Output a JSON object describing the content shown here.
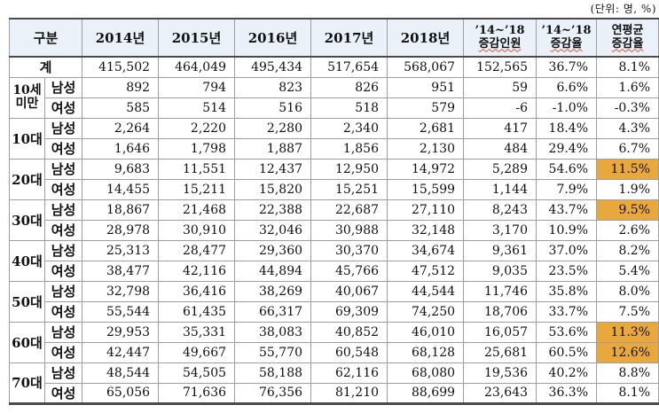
{
  "caption": "(단위: 명, %)",
  "colors": {
    "header_bg": "#EAF1F8",
    "highlight": "#E8A83C",
    "wavy_underline": "#e0523c"
  },
  "table": {
    "headers": {
      "gubun": "구분",
      "years": [
        "2014년",
        "2015년",
        "2016년",
        "2017년",
        "2018년"
      ],
      "change_count_line1": "’14~’18",
      "change_count_line2": "증감인원",
      "change_rate_line1": "’14~’18",
      "change_rate_line2": "증감율",
      "avg_rate_line1": "연평균",
      "avg_rate_line2": "증감율"
    },
    "total_row": {
      "label": "계",
      "values": [
        "415,502",
        "464,049",
        "495,434",
        "517,654",
        "568,067",
        "152,565",
        "36.7%",
        "8.1%"
      ],
      "hl": []
    },
    "groups": [
      {
        "age_lines": [
          "10세",
          "미만"
        ],
        "rows": [
          {
            "gender": "남성",
            "values": [
              "892",
              "794",
              "823",
              "826",
              "951",
              "59",
              "6.6%",
              "1.6%"
            ],
            "hl": []
          },
          {
            "gender": "여성",
            "values": [
              "585",
              "514",
              "516",
              "518",
              "579",
              "-6",
              "-1.0%",
              "-0.3%"
            ],
            "hl": []
          }
        ]
      },
      {
        "age_lines": [
          "10대"
        ],
        "rows": [
          {
            "gender": "남성",
            "values": [
              "2,264",
              "2,220",
              "2,280",
              "2,340",
              "2,681",
              "417",
              "18.4%",
              "4.3%"
            ],
            "hl": []
          },
          {
            "gender": "여성",
            "values": [
              "1,646",
              "1,798",
              "1,887",
              "1,856",
              "2,130",
              "484",
              "29.4%",
              "6.7%"
            ],
            "hl": []
          }
        ]
      },
      {
        "age_lines": [
          "20대"
        ],
        "rows": [
          {
            "gender": "남성",
            "values": [
              "9,683",
              "11,551",
              "12,437",
              "12,950",
              "14,972",
              "5,289",
              "54.6%",
              "11.5%"
            ],
            "hl": [
              7
            ]
          },
          {
            "gender": "여성",
            "values": [
              "14,455",
              "15,211",
              "15,820",
              "15,251",
              "15,599",
              "1,144",
              "7.9%",
              "1.9%"
            ],
            "hl": []
          }
        ]
      },
      {
        "age_lines": [
          "30대"
        ],
        "rows": [
          {
            "gender": "남성",
            "values": [
              "18,867",
              "21,468",
              "22,388",
              "22,687",
              "27,110",
              "8,243",
              "43.7%",
              "9.5%"
            ],
            "hl": [
              7
            ]
          },
          {
            "gender": "여성",
            "values": [
              "28,978",
              "30,910",
              "32,046",
              "30,988",
              "32,148",
              "3,170",
              "10.9%",
              "2.6%"
            ],
            "hl": []
          }
        ]
      },
      {
        "age_lines": [
          "40대"
        ],
        "rows": [
          {
            "gender": "남성",
            "values": [
              "25,313",
              "28,477",
              "29,360",
              "30,370",
              "34,674",
              "9,361",
              "37.0%",
              "8.2%"
            ],
            "hl": []
          },
          {
            "gender": "여성",
            "values": [
              "38,477",
              "42,116",
              "44,894",
              "45,766",
              "47,512",
              "9,035",
              "23.5%",
              "5.4%"
            ],
            "hl": []
          }
        ]
      },
      {
        "age_lines": [
          "50대"
        ],
        "rows": [
          {
            "gender": "남성",
            "values": [
              "32,798",
              "36,416",
              "38,269",
              "40,067",
              "44,544",
              "11,746",
              "35.8%",
              "8.0%"
            ],
            "hl": []
          },
          {
            "gender": "여성",
            "values": [
              "55,544",
              "61,435",
              "66,317",
              "69,309",
              "74,250",
              "18,706",
              "33.7%",
              "7.5%"
            ],
            "hl": []
          }
        ]
      },
      {
        "age_lines": [
          "60대"
        ],
        "rows": [
          {
            "gender": "남성",
            "values": [
              "29,953",
              "35,331",
              "38,083",
              "40,852",
              "46,010",
              "16,057",
              "53.6%",
              "11.3%"
            ],
            "hl": [
              7
            ]
          },
          {
            "gender": "여성",
            "values": [
              "42,447",
              "49,667",
              "55,770",
              "60,548",
              "68,128",
              "25,681",
              "60.5%",
              "12.6%"
            ],
            "hl": [
              7
            ]
          }
        ]
      },
      {
        "age_lines": [
          "70대"
        ],
        "rows": [
          {
            "gender": "남성",
            "values": [
              "48,544",
              "54,505",
              "58,188",
              "62,116",
              "68,080",
              "19,536",
              "40.2%",
              "8.8%"
            ],
            "hl": []
          },
          {
            "gender": "여성",
            "values": [
              "65,056",
              "71,636",
              "76,356",
              "81,210",
              "88,699",
              "23,643",
              "36.3%",
              "8.1%"
            ],
            "hl": []
          }
        ]
      }
    ]
  }
}
